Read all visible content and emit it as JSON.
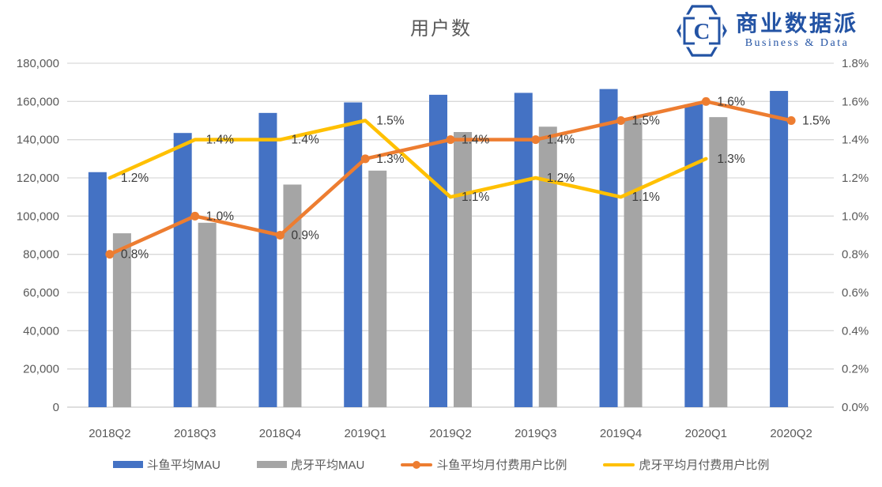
{
  "title": "用户数",
  "logo": {
    "brand_cn": "商业数据派",
    "brand_en": "Business & Data",
    "monogram": "C",
    "color": "#2353A4"
  },
  "colors": {
    "douyu_bar": "#4472C4",
    "huya_bar": "#A5A5A5",
    "douyu_line": "#ED7D31",
    "huya_line": "#FFC000",
    "gridline": "#D9D9D9",
    "axis_line": "#C9C9C9",
    "axis_text": "#595959",
    "data_label_text": "#3B3B3B"
  },
  "chart_data": {
    "type": "bar",
    "subtype": "combo bar+line, dual axis",
    "title": "用户数",
    "xlabel": "",
    "ylabel": "",
    "grid": true,
    "legend_position": "bottom",
    "categories": [
      "2018Q2",
      "2018Q3",
      "2018Q4",
      "2019Q1",
      "2019Q2",
      "2019Q3",
      "2019Q4",
      "2020Q1",
      "2020Q2"
    ],
    "left_axis": {
      "min": 0,
      "max": 180000,
      "step": 20000,
      "ticks": [
        "180,000",
        "160,000",
        "140,000",
        "120,000",
        "100,000",
        "80,000",
        "60,000",
        "40,000",
        "20,000",
        "0"
      ]
    },
    "right_axis": {
      "min": 0,
      "max": 1.8,
      "step": 0.2,
      "format": "percent",
      "ticks": [
        "1.8%",
        "1.6%",
        "1.4%",
        "1.2%",
        "1.0%",
        "0.8%",
        "0.6%",
        "0.4%",
        "0.2%",
        "0.0%"
      ]
    },
    "series": [
      {
        "name": "斗鱼平均MAU",
        "type": "bar",
        "axis": "left",
        "color": "#4472C4",
        "marker": false,
        "values": [
          123000,
          143500,
          154000,
          159500,
          163500,
          164500,
          166500,
          158500,
          165500
        ],
        "labels": []
      },
      {
        "name": "虎牙平均MAU",
        "type": "bar",
        "axis": "left",
        "color": "#A5A5A5",
        "marker": false,
        "values": [
          91000,
          96500,
          116500,
          123800,
          144000,
          146800,
          151000,
          151800,
          null
        ],
        "labels": []
      },
      {
        "name": "斗鱼平均月付费用户比例",
        "type": "line",
        "axis": "right",
        "color": "#ED7D31",
        "marker": true,
        "values": [
          0.8,
          1.0,
          0.9,
          1.3,
          1.4,
          1.4,
          1.5,
          1.6,
          1.5
        ],
        "labels": [
          "0.8%",
          "1.0%",
          "0.9%",
          "1.3%",
          "1.4%",
          "1.4%",
          "1.5%",
          "1.6%",
          "1.5%"
        ]
      },
      {
        "name": "虎牙平均月付费用户比例",
        "type": "line",
        "axis": "right",
        "color": "#FFC000",
        "marker": false,
        "values": [
          1.2,
          1.4,
          1.4,
          1.5,
          1.1,
          1.2,
          1.1,
          1.3,
          null
        ],
        "labels": [
          "1.2%",
          "1.4%",
          "1.4%",
          "1.5%",
          "1.1%",
          "1.2%",
          "1.1%",
          "1.3%",
          ""
        ]
      }
    ]
  }
}
